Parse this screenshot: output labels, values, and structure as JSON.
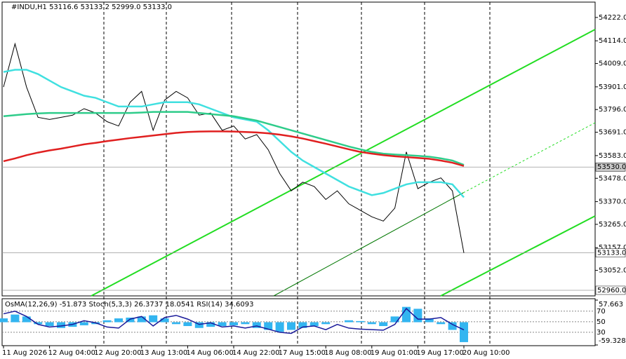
{
  "chart_data": [
    {
      "type": "line",
      "title": "#INDU,H1  53116.6 53133.2 52999.0 53133.0",
      "categories": [
        "11 Aug 2026",
        null,
        null,
        null,
        "12 Aug 04:00",
        null,
        null,
        null,
        "12 Aug 20:00",
        null,
        null,
        null,
        "13 Aug 13:00",
        null,
        null,
        null,
        "14 Aug 06:00",
        null,
        null,
        null,
        "14 Aug 22:00",
        null,
        null,
        null,
        "17 Aug 15:00",
        null,
        null,
        null,
        "18 Aug 08:00",
        null,
        null,
        null,
        "19 Aug 01:00",
        null,
        null,
        null,
        "19 Aug 17:00",
        null,
        null,
        null,
        "20 Aug 10:00"
      ],
      "series": [
        {
          "color": "#000000",
          "values": [
            53900,
            54100,
            53900,
            53760,
            53750,
            53760,
            53770,
            53800,
            53780,
            53740,
            53720,
            53830,
            53880,
            53700,
            53840,
            53880,
            53850,
            53770,
            53780,
            53700,
            53720,
            53660,
            53680,
            53610,
            53500,
            53420,
            53460,
            53440,
            53380,
            53420,
            53360,
            53330,
            53300,
            53280,
            53340,
            53600,
            53430,
            53460,
            53480,
            53420,
            53133
          ]
        },
        {
          "color": "#40e0e0",
          "values": [
            53970,
            53980,
            53980,
            53960,
            53930,
            53900,
            53880,
            53860,
            53850,
            53830,
            53810,
            53810,
            53810,
            53820,
            53830,
            53830,
            53830,
            53820,
            53800,
            53780,
            53760,
            53750,
            53740,
            53700,
            53650,
            53600,
            53560,
            53530,
            53500,
            53470,
            53440,
            53420,
            53400,
            53410,
            53430,
            53450,
            53460,
            53460,
            53460,
            53450,
            53390
          ]
        },
        {
          "color": "#2ecc8a",
          "values": [
            53765,
            53770,
            53775,
            53778,
            53780,
            53780,
            53780,
            53780,
            53780,
            53780,
            53780,
            53780,
            53782,
            53785,
            53785,
            53785,
            53785,
            53780,
            53775,
            53770,
            53765,
            53755,
            53745,
            53730,
            53715,
            53700,
            53685,
            53670,
            53655,
            53640,
            53625,
            53612,
            53600,
            53592,
            53588,
            53585,
            53582,
            53578,
            53570,
            53560,
            53540
          ]
        },
        {
          "color": "#e02020",
          "values": [
            53557,
            53570,
            53585,
            53597,
            53607,
            53615,
            53625,
            53635,
            53642,
            53650,
            53657,
            53664,
            53670,
            53676,
            53682,
            53688,
            53692,
            53694,
            53695,
            53695,
            53694,
            53692,
            53690,
            53686,
            53680,
            53672,
            53662,
            53650,
            53638,
            53625,
            53612,
            53600,
            53592,
            53585,
            53580,
            53576,
            53572,
            53568,
            53560,
            53550,
            53535
          ]
        }
      ],
      "ylim": [
        52934,
        54293
      ],
      "yticks": [
        {
          "value": 54222,
          "label": "54222.0"
        },
        {
          "value": 54114,
          "label": "54114.0"
        },
        {
          "value": 54009,
          "label": "54009.0"
        },
        {
          "value": 53901,
          "label": "53901.0"
        },
        {
          "value": 53796,
          "label": "53796.0"
        },
        {
          "value": 53691,
          "label": "53691.0"
        },
        {
          "value": 53583,
          "label": "53583.0"
        },
        {
          "value": 53478,
          "label": "53478.0"
        },
        {
          "value": 53370,
          "label": "53370.0"
        },
        {
          "value": 53265,
          "label": "53265.0"
        },
        {
          "value": 53157,
          "label": "53157.0"
        },
        {
          "value": 53052,
          "label": "53052.0"
        }
      ],
      "price_labels": [
        {
          "value": 53530,
          "label": "53530.0"
        },
        {
          "value": 53133,
          "label": "53133.0"
        },
        {
          "value": 52960,
          "label": "52960.0"
        }
      ]
    },
    {
      "type": "bar",
      "title": "OsMA(12,26,9) -51.873  Stoch(5,3,3) 26.3737 18.0541  RSI(14) 34.6093",
      "values": [
        10,
        20,
        15,
        -5,
        -10,
        -15,
        -12,
        -8,
        -5,
        5,
        10,
        12,
        15,
        18,
        10,
        -5,
        -10,
        -15,
        -12,
        -10,
        -8,
        -5,
        -15,
        -20,
        -25,
        -20,
        -15,
        -10,
        -5,
        0,
        5,
        3,
        -5,
        -10,
        15,
        40,
        35,
        10,
        -5,
        -20,
        -51.873
      ],
      "color": "#33b5f0",
      "ylim": [
        -59.328,
        57.663
      ],
      "yticks": [
        {
          "value": 57.663,
          "label": "57.663"
        },
        {
          "value": -59.328,
          "label": "-59.328"
        }
      ],
      "series": [
        {
          "color": "#1a1a9a",
          "axis": "y2",
          "values": [
            65,
            70,
            60,
            45,
            40,
            42,
            45,
            52,
            48,
            40,
            38,
            55,
            60,
            42,
            58,
            62,
            55,
            45,
            48,
            40,
            42,
            38,
            42,
            36,
            30,
            28,
            40,
            42,
            35,
            45,
            38,
            36,
            35,
            34,
            45,
            75,
            55,
            55,
            58,
            45,
            34.6093
          ]
        }
      ],
      "y2lim": [
        6,
        91
      ],
      "y2ticks": [
        70,
        50,
        30
      ]
    }
  ]
}
